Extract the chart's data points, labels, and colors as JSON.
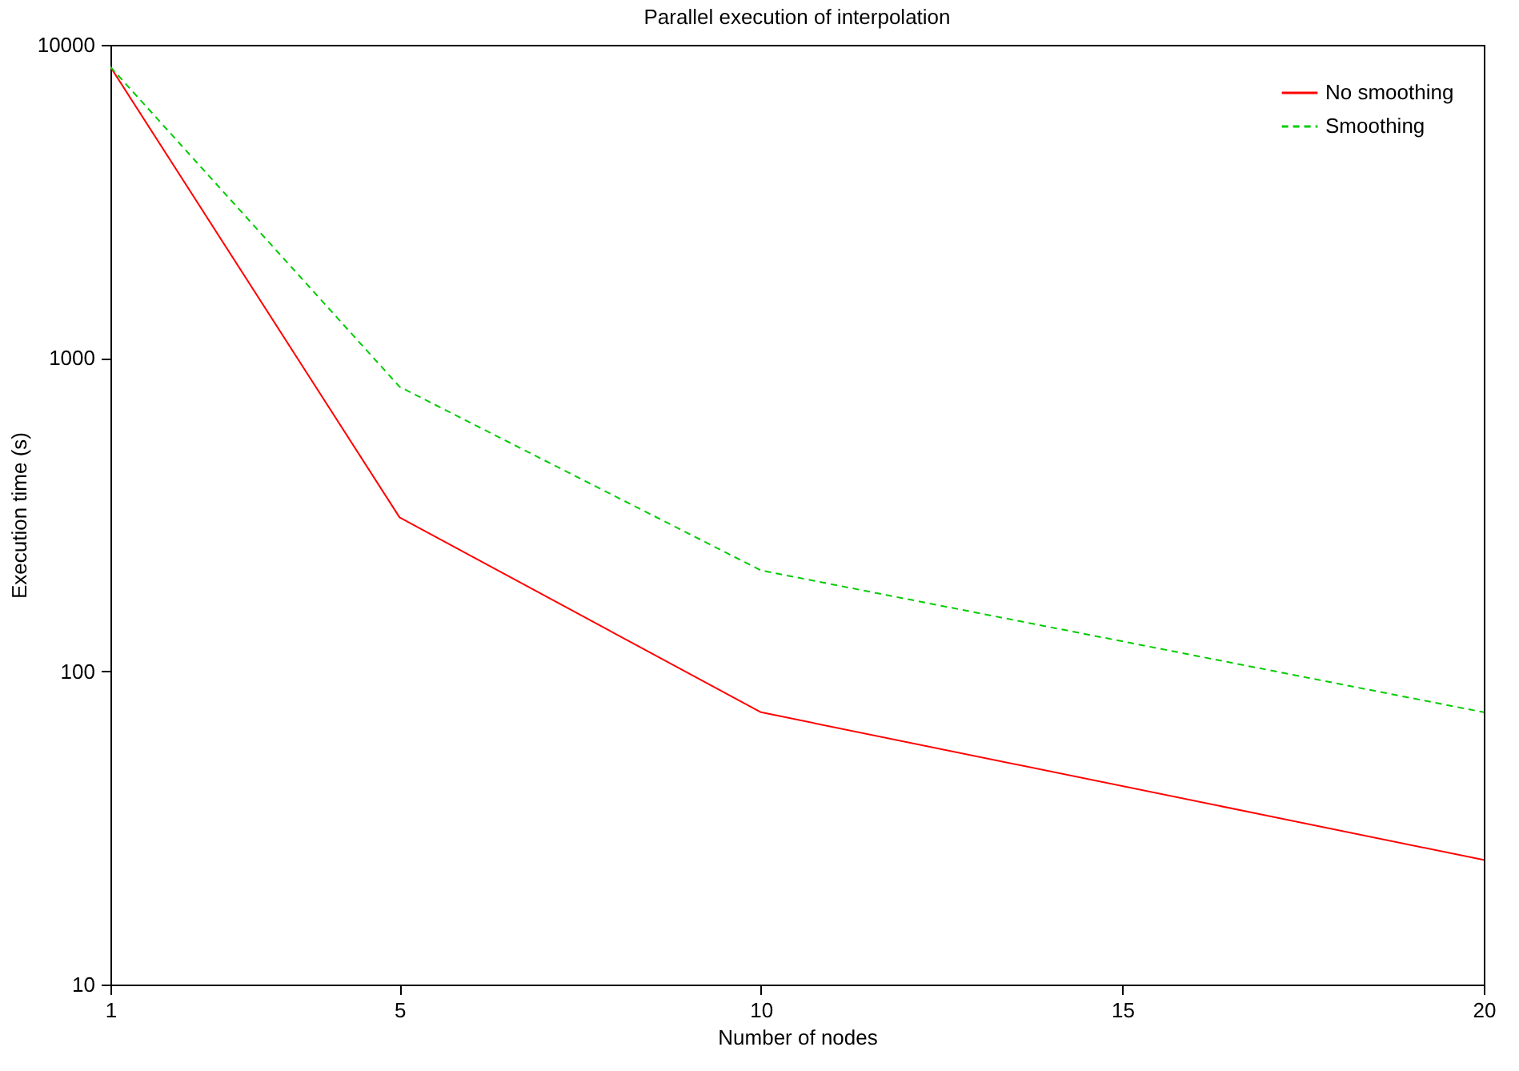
{
  "chart_data": {
    "type": "line",
    "title": "Parallel execution of interpolation",
    "xlabel": "Number of nodes",
    "ylabel": "Execution time (s)",
    "x": [
      1,
      5,
      10,
      20
    ],
    "series": [
      {
        "name": "No smoothing",
        "color": "#ff0000",
        "line_style": "solid",
        "values": [
          8500,
          310,
          74,
          25
        ]
      },
      {
        "name": "Smoothing",
        "color": "#00cc00",
        "line_style": "dashed",
        "values": [
          8500,
          810,
          210,
          74
        ]
      }
    ],
    "xlim": [
      1,
      20
    ],
    "xticks": [
      1,
      5,
      10,
      15,
      20
    ],
    "ylim": [
      10,
      10000
    ],
    "yticks": [
      10,
      100,
      1000,
      10000
    ],
    "log": "y",
    "grid": false,
    "legend": "top right",
    "marker": "none"
  }
}
